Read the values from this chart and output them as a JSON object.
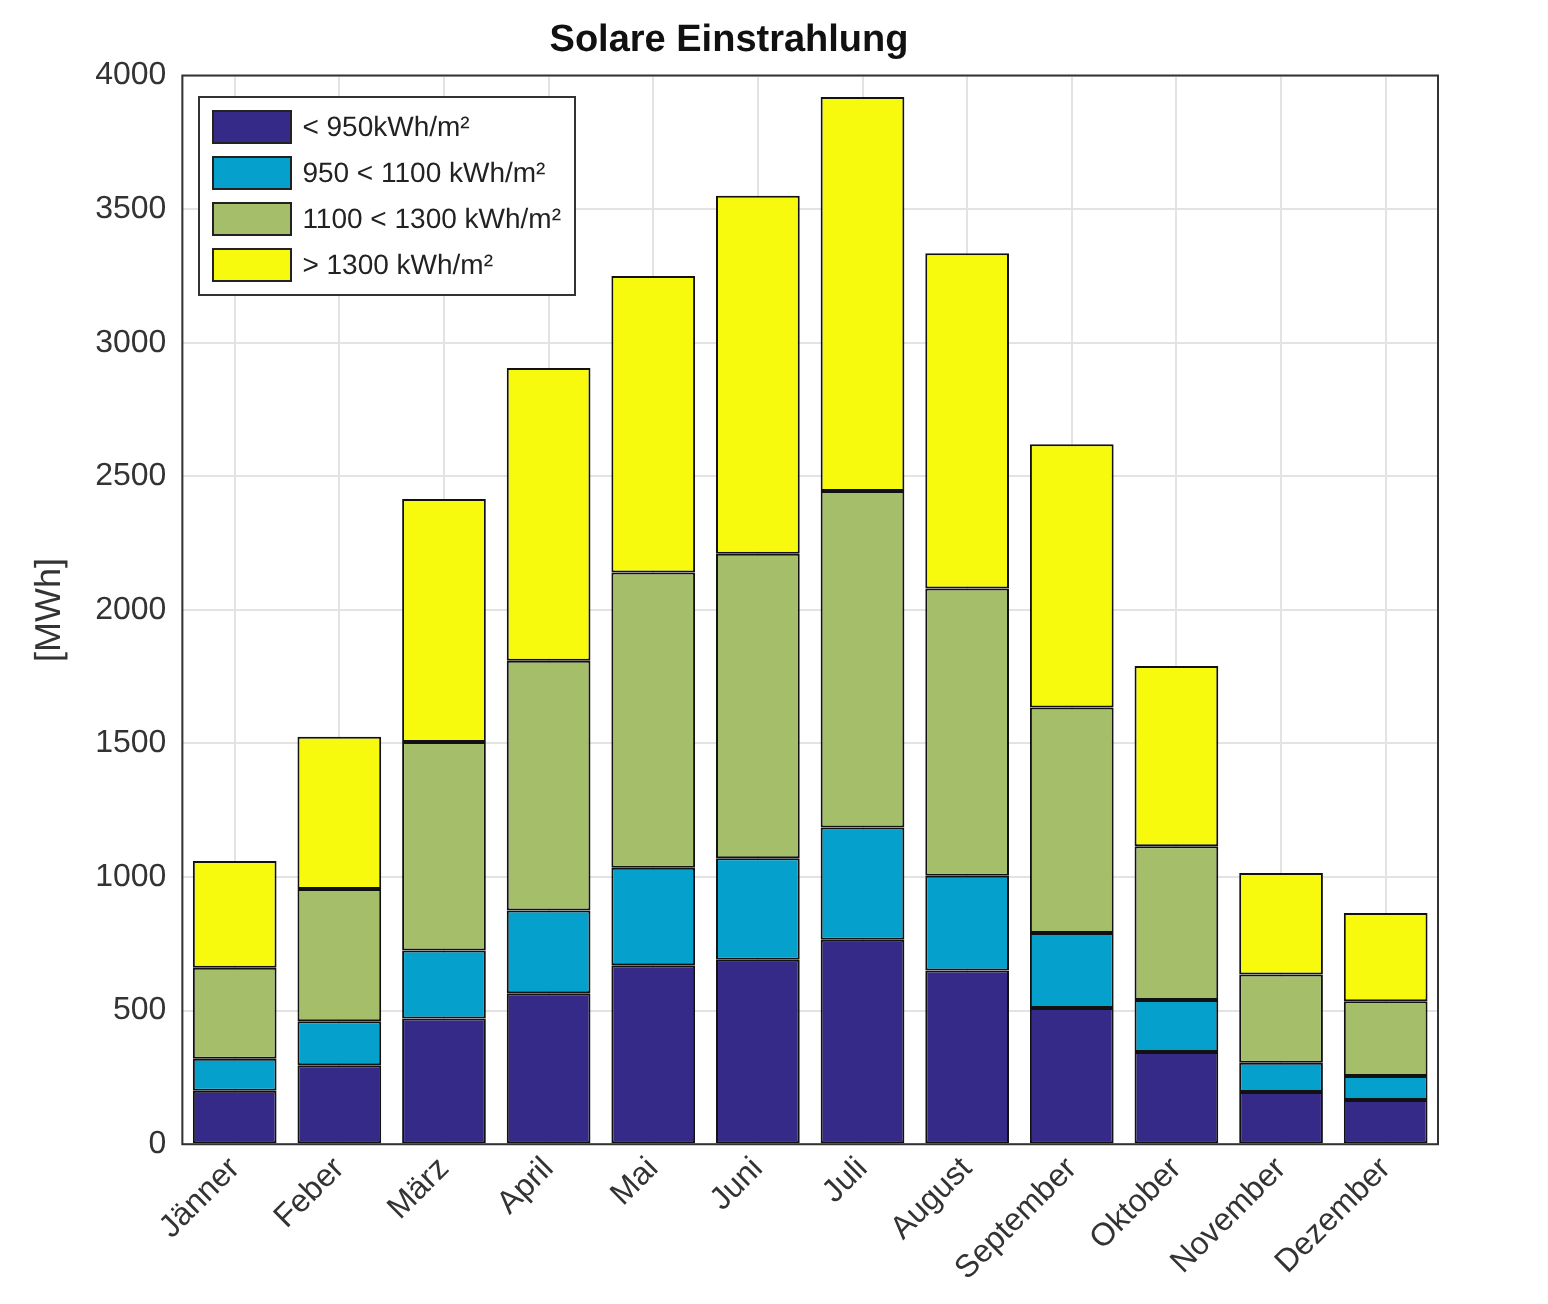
{
  "chart_data": {
    "type": "bar",
    "title": "Solare Einstrahlung",
    "ylabel": "[MWh]",
    "stacked": true,
    "categories": [
      "Jänner",
      "Feber",
      "März",
      "April",
      "Mai",
      "Juni",
      "Juli",
      "August",
      "September",
      "Oktober",
      "November",
      "Dezember"
    ],
    "series": [
      {
        "name": "< 950kWh/m²",
        "color": "#352a87",
        "values": [
          200,
          295,
          470,
          565,
          670,
          690,
          765,
          650,
          510,
          345,
          195,
          165
        ]
      },
      {
        "name": "950 < 1100 kWh/m²",
        "color": "#06a0cd",
        "values": [
          120,
          165,
          255,
          310,
          365,
          380,
          420,
          355,
          280,
          195,
          110,
          90
        ]
      },
      {
        "name": "1100 < 1300 kWh/m²",
        "color": "#a5be6a",
        "values": [
          340,
          495,
          780,
          935,
          1105,
          1140,
          1260,
          1075,
          845,
          575,
          330,
          280
        ]
      },
      {
        "name": "> 1300 kWh/m²",
        "color": "#f8fa0d",
        "values": [
          400,
          570,
          910,
          1095,
          1110,
          1340,
          1475,
          1255,
          985,
          675,
          380,
          330
        ]
      }
    ],
    "ylim": [
      0,
      4000
    ],
    "yticks": [
      0,
      500,
      1000,
      1500,
      2000,
      2500,
      3000,
      3500,
      4000
    ],
    "grid": true,
    "legend": "top left"
  }
}
